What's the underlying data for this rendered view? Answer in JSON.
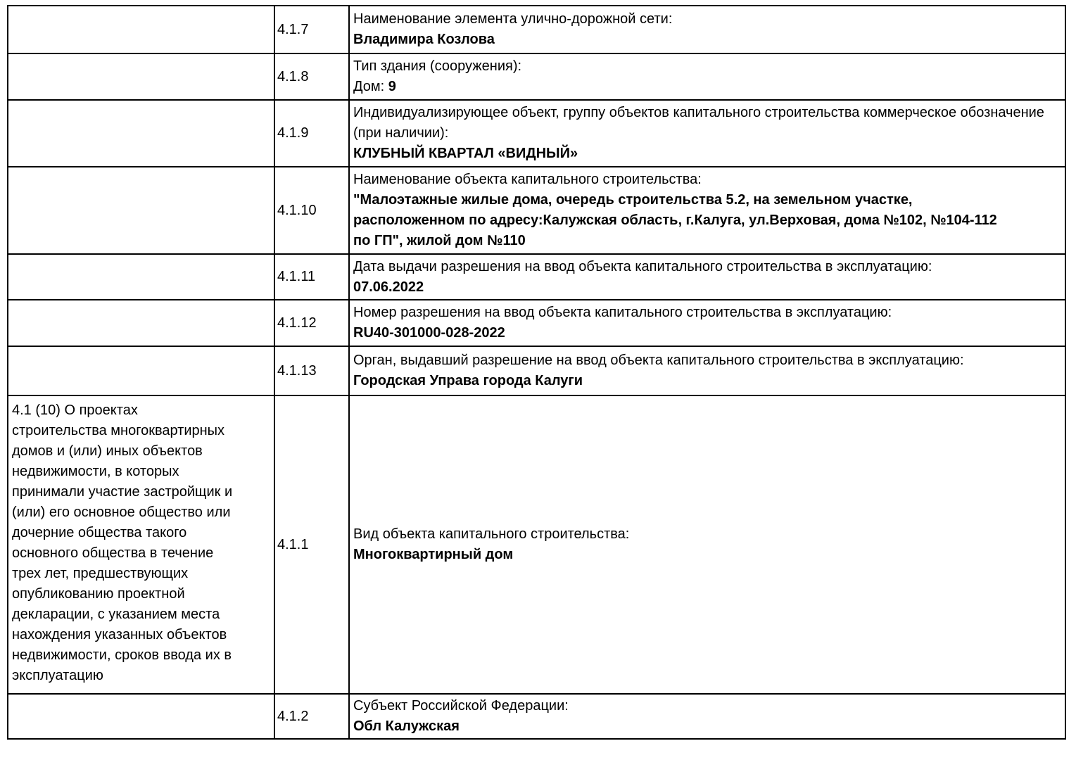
{
  "page": {
    "background_color": "#ffffff",
    "text_color": "#000000",
    "border_color": "#000000"
  },
  "table": {
    "section_label": "4.1 (10) О проектах\nстроительства многоквартирных\nдомов и (или) иных объектов\nнедвижимости, в которых\nпринимали участие застройщик и\n(или) его основное общество или\nдочерние общества такого\nосновного общества в течение\nтрех лет, предшествующих\nопубликованию проектной\nдекларации, с указанием места\nнахождения указанных объектов\nнедвижимости, сроков ввода их в\nэксплуатацию",
    "rows": [
      {
        "code": "4.1.7",
        "label": "Наименование элемента улично-дорожной сети:",
        "value": "Владимира Козлова"
      },
      {
        "code": "4.1.8",
        "label": "Тип здания (сооружения):",
        "value_prefix": "Дом: ",
        "value": "9"
      },
      {
        "code": "4.1.9",
        "label": "Индивидуализирующее объект, группу объектов капитального строительства коммерческое обозначение (при наличии):",
        "value": "КЛУБНЫЙ КВАРТАЛ «ВИДНЫЙ»"
      },
      {
        "code": "4.1.10",
        "label": "Наименование объекта капитального строительства:",
        "value": "\"Малоэтажные жилые дома, очередь строительства 5.2, на земельном участке,\nрасположенном по адресу:Калужская область, г.Калуга, ул.Верховая, дома №102, №104-112\nпо ГП\", жилой дом №110"
      },
      {
        "code": "4.1.11",
        "label": "Дата выдачи разрешения на ввод объекта капитального строительства в эксплуатацию:",
        "value": "07.06.2022"
      },
      {
        "code": "4.1.12",
        "label": "Номер разрешения на ввод объекта капитального строительства в эксплуатацию:",
        "value": "RU40-301000-028-2022"
      },
      {
        "code": "4.1.13",
        "label": "Орган, выдавший разрешение на ввод объекта капитального строительства в эксплуатацию:",
        "value": "Городская Управа города Калуги"
      },
      {
        "code": "4.1.1",
        "label": "Вид объекта капитального строительства:",
        "value": "Многоквартирный дом"
      },
      {
        "code": "4.1.2",
        "label": "Субъект Российской Федерации:",
        "value": "Обл Калужская"
      }
    ]
  }
}
